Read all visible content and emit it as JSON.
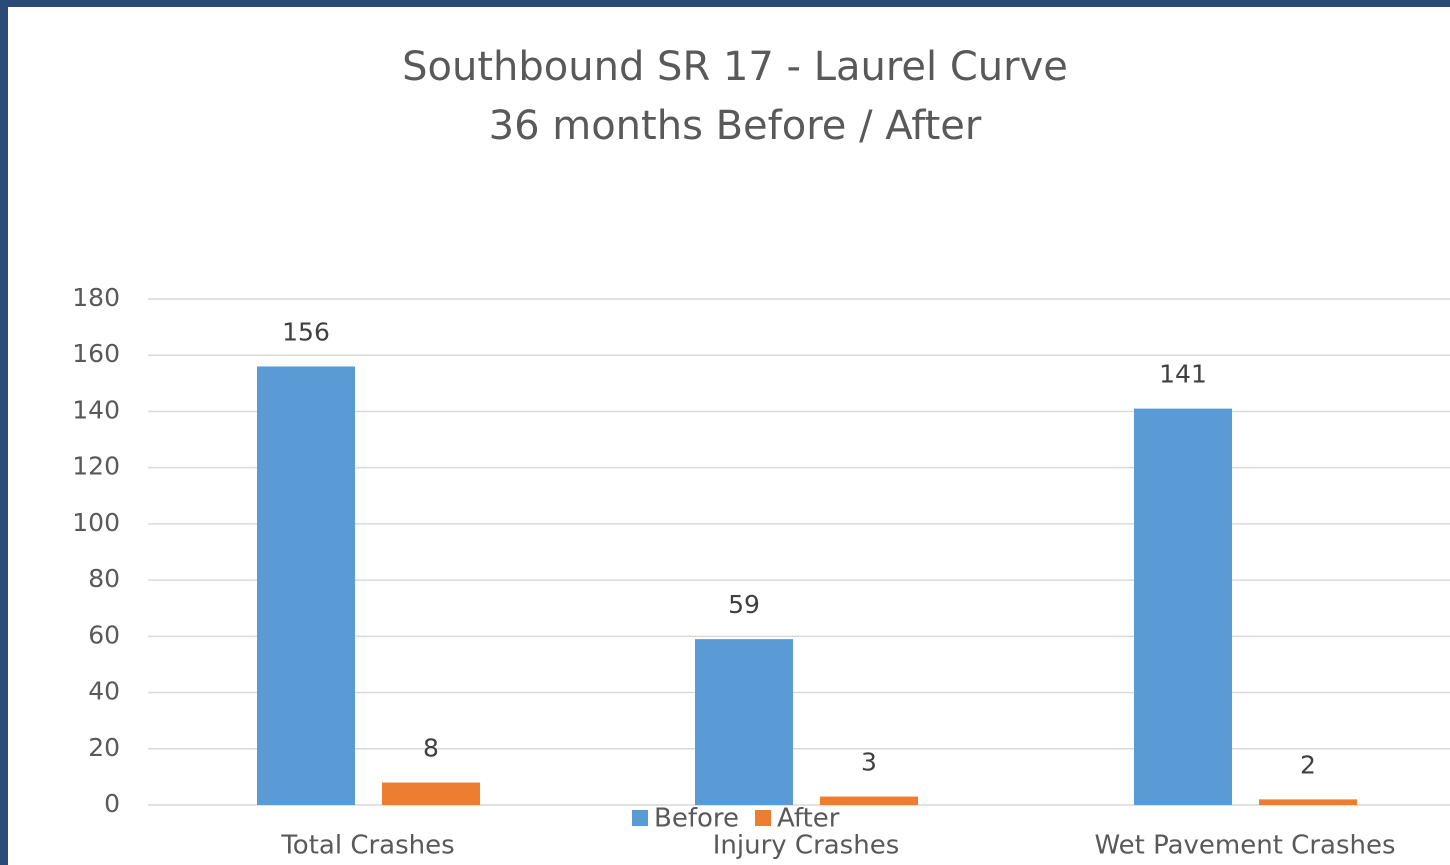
{
  "chart_data": {
    "type": "bar",
    "title": "Southbound SR 17 - Laurel Curve",
    "subtitle": "36 months Before / After",
    "categories": [
      "Total Crashes",
      "Injury Crashes",
      "Wet Pavement Crashes"
    ],
    "series": [
      {
        "name": "Before",
        "color": "#5b9bd5",
        "values": [
          156,
          59,
          141
        ]
      },
      {
        "name": "After",
        "color": "#ed7d31",
        "values": [
          8,
          3,
          2
        ]
      }
    ],
    "ylim": [
      0,
      180
    ],
    "yticks": [
      0,
      20,
      40,
      60,
      80,
      100,
      120,
      140,
      160,
      180
    ],
    "grid": true,
    "legend": "bottom"
  }
}
